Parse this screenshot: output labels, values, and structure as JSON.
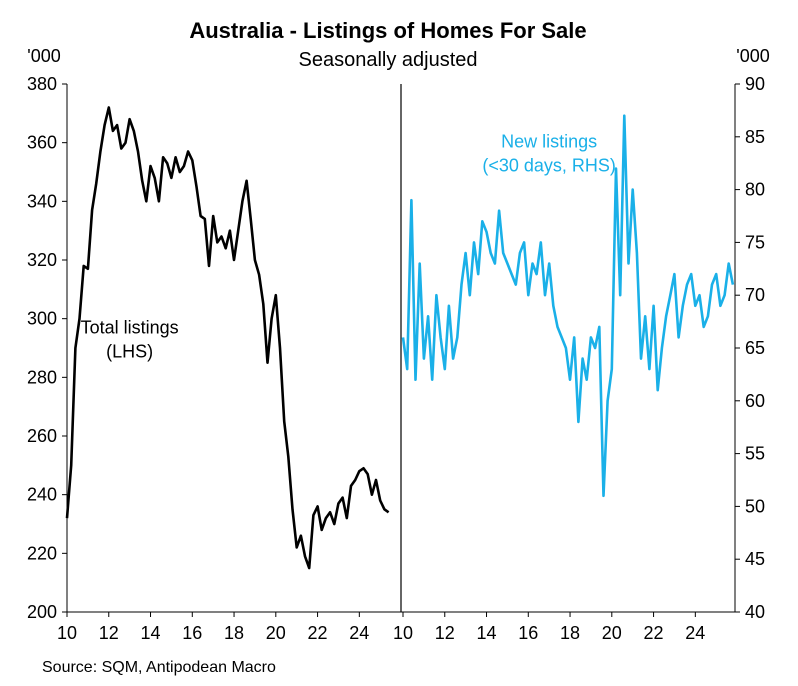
{
  "chart_data": {
    "type": "line",
    "title": "Australia - Listings of Homes For Sale",
    "subtitle": "Seasonally adjusted",
    "source": "Source: SQM, Antipodean Macro",
    "colors": {
      "total": "#000000",
      "new": "#1ab0e8",
      "axis": "#000000"
    },
    "panels": [
      {
        "id": "left",
        "series_name": "Total listings\n(LHS)",
        "label_lines": [
          "Total listings",
          "(LHS)"
        ],
        "y_unit": "'000",
        "ylim": [
          200,
          380
        ],
        "y_ticks": [
          200,
          220,
          240,
          260,
          280,
          300,
          320,
          340,
          360,
          380
        ],
        "xlim": [
          2010,
          2025.9
        ],
        "x_ticks": [
          "10",
          "12",
          "14",
          "16",
          "18",
          "20",
          "22",
          "24"
        ],
        "x": [
          2010.0,
          2010.2,
          2010.4,
          2010.6,
          2010.8,
          2011.0,
          2011.2,
          2011.4,
          2011.6,
          2011.8,
          2012.0,
          2012.2,
          2012.4,
          2012.6,
          2012.8,
          2013.0,
          2013.2,
          2013.4,
          2013.6,
          2013.8,
          2014.0,
          2014.2,
          2014.4,
          2014.6,
          2014.8,
          2015.0,
          2015.2,
          2015.4,
          2015.6,
          2015.8,
          2016.0,
          2016.2,
          2016.4,
          2016.6,
          2016.8,
          2017.0,
          2017.2,
          2017.4,
          2017.6,
          2017.8,
          2018.0,
          2018.2,
          2018.4,
          2018.6,
          2018.8,
          2019.0,
          2019.2,
          2019.4,
          2019.6,
          2019.8,
          2020.0,
          2020.2,
          2020.4,
          2020.6,
          2020.8,
          2021.0,
          2021.2,
          2021.4,
          2021.6,
          2021.8,
          2022.0,
          2022.2,
          2022.4,
          2022.6,
          2022.8,
          2023.0,
          2023.2,
          2023.4,
          2023.6,
          2023.8,
          2024.0,
          2024.2,
          2024.4,
          2024.6,
          2024.8,
          2025.0,
          2025.2,
          2025.4
        ],
        "values": [
          232,
          250,
          290,
          300,
          318,
          317,
          337,
          346,
          357,
          366,
          372,
          364,
          366,
          358,
          360,
          368,
          364,
          357,
          347,
          340,
          352,
          348,
          340,
          355,
          353,
          348,
          355,
          350,
          352,
          357,
          354,
          345,
          335,
          334,
          318,
          335,
          326,
          328,
          324,
          330,
          320,
          330,
          340,
          347,
          334,
          320,
          315,
          305,
          285,
          300,
          308,
          290,
          265,
          253,
          235,
          222,
          226,
          219,
          215,
          233,
          236,
          228,
          232,
          234,
          230,
          237,
          239,
          232,
          243,
          245,
          248,
          249,
          247,
          240,
          245,
          238,
          235,
          234
        ],
        "label_x": 2013.0,
        "label_y": 295
      },
      {
        "id": "right",
        "series_name": "New listings\n(<30 days, RHS)",
        "label_lines": [
          "New listings",
          "(<30 days, RHS)"
        ],
        "y_unit": "'000",
        "ylim": [
          40,
          90
        ],
        "y_ticks": [
          40,
          45,
          50,
          55,
          60,
          65,
          70,
          75,
          80,
          85,
          90
        ],
        "xlim": [
          2010,
          2025.9
        ],
        "x_ticks": [
          "10",
          "12",
          "14",
          "16",
          "18",
          "20",
          "22",
          "24"
        ],
        "x": [
          2010.0,
          2010.2,
          2010.4,
          2010.6,
          2010.8,
          2011.0,
          2011.2,
          2011.4,
          2011.6,
          2011.8,
          2012.0,
          2012.2,
          2012.4,
          2012.6,
          2012.8,
          2013.0,
          2013.2,
          2013.4,
          2013.6,
          2013.8,
          2014.0,
          2014.2,
          2014.4,
          2014.6,
          2014.8,
          2015.0,
          2015.2,
          2015.4,
          2015.6,
          2015.8,
          2016.0,
          2016.2,
          2016.4,
          2016.6,
          2016.8,
          2017.0,
          2017.2,
          2017.4,
          2017.6,
          2017.8,
          2018.0,
          2018.2,
          2018.4,
          2018.6,
          2018.8,
          2019.0,
          2019.2,
          2019.4,
          2019.6,
          2019.8,
          2020.0,
          2020.2,
          2020.4,
          2020.6,
          2020.8,
          2021.0,
          2021.2,
          2021.4,
          2021.6,
          2021.8,
          2022.0,
          2022.2,
          2022.4,
          2022.6,
          2022.8,
          2023.0,
          2023.2,
          2023.4,
          2023.6,
          2023.8,
          2024.0,
          2024.2,
          2024.4,
          2024.6,
          2024.8,
          2025.0,
          2025.2,
          2025.4,
          2025.6,
          2025.8
        ],
        "values": [
          66,
          63,
          79,
          62,
          73,
          64,
          68,
          62,
          70,
          66,
          63,
          69,
          64,
          66,
          71,
          74,
          70,
          75,
          72,
          77,
          76,
          74,
          73,
          78,
          74,
          73,
          72,
          71,
          74,
          75,
          70,
          73,
          72,
          75,
          70,
          73,
          69,
          67,
          66,
          65,
          62,
          66,
          58,
          64,
          62,
          66,
          65,
          67,
          51,
          60,
          63,
          82,
          70,
          87,
          73,
          80,
          74,
          64,
          68,
          63,
          69,
          61,
          65,
          68,
          70,
          72,
          66,
          69,
          71,
          72,
          69,
          70,
          67,
          68,
          71,
          72,
          69,
          70,
          73,
          71
        ],
        "label_x": 2017.0,
        "label_y": 84
      }
    ]
  }
}
